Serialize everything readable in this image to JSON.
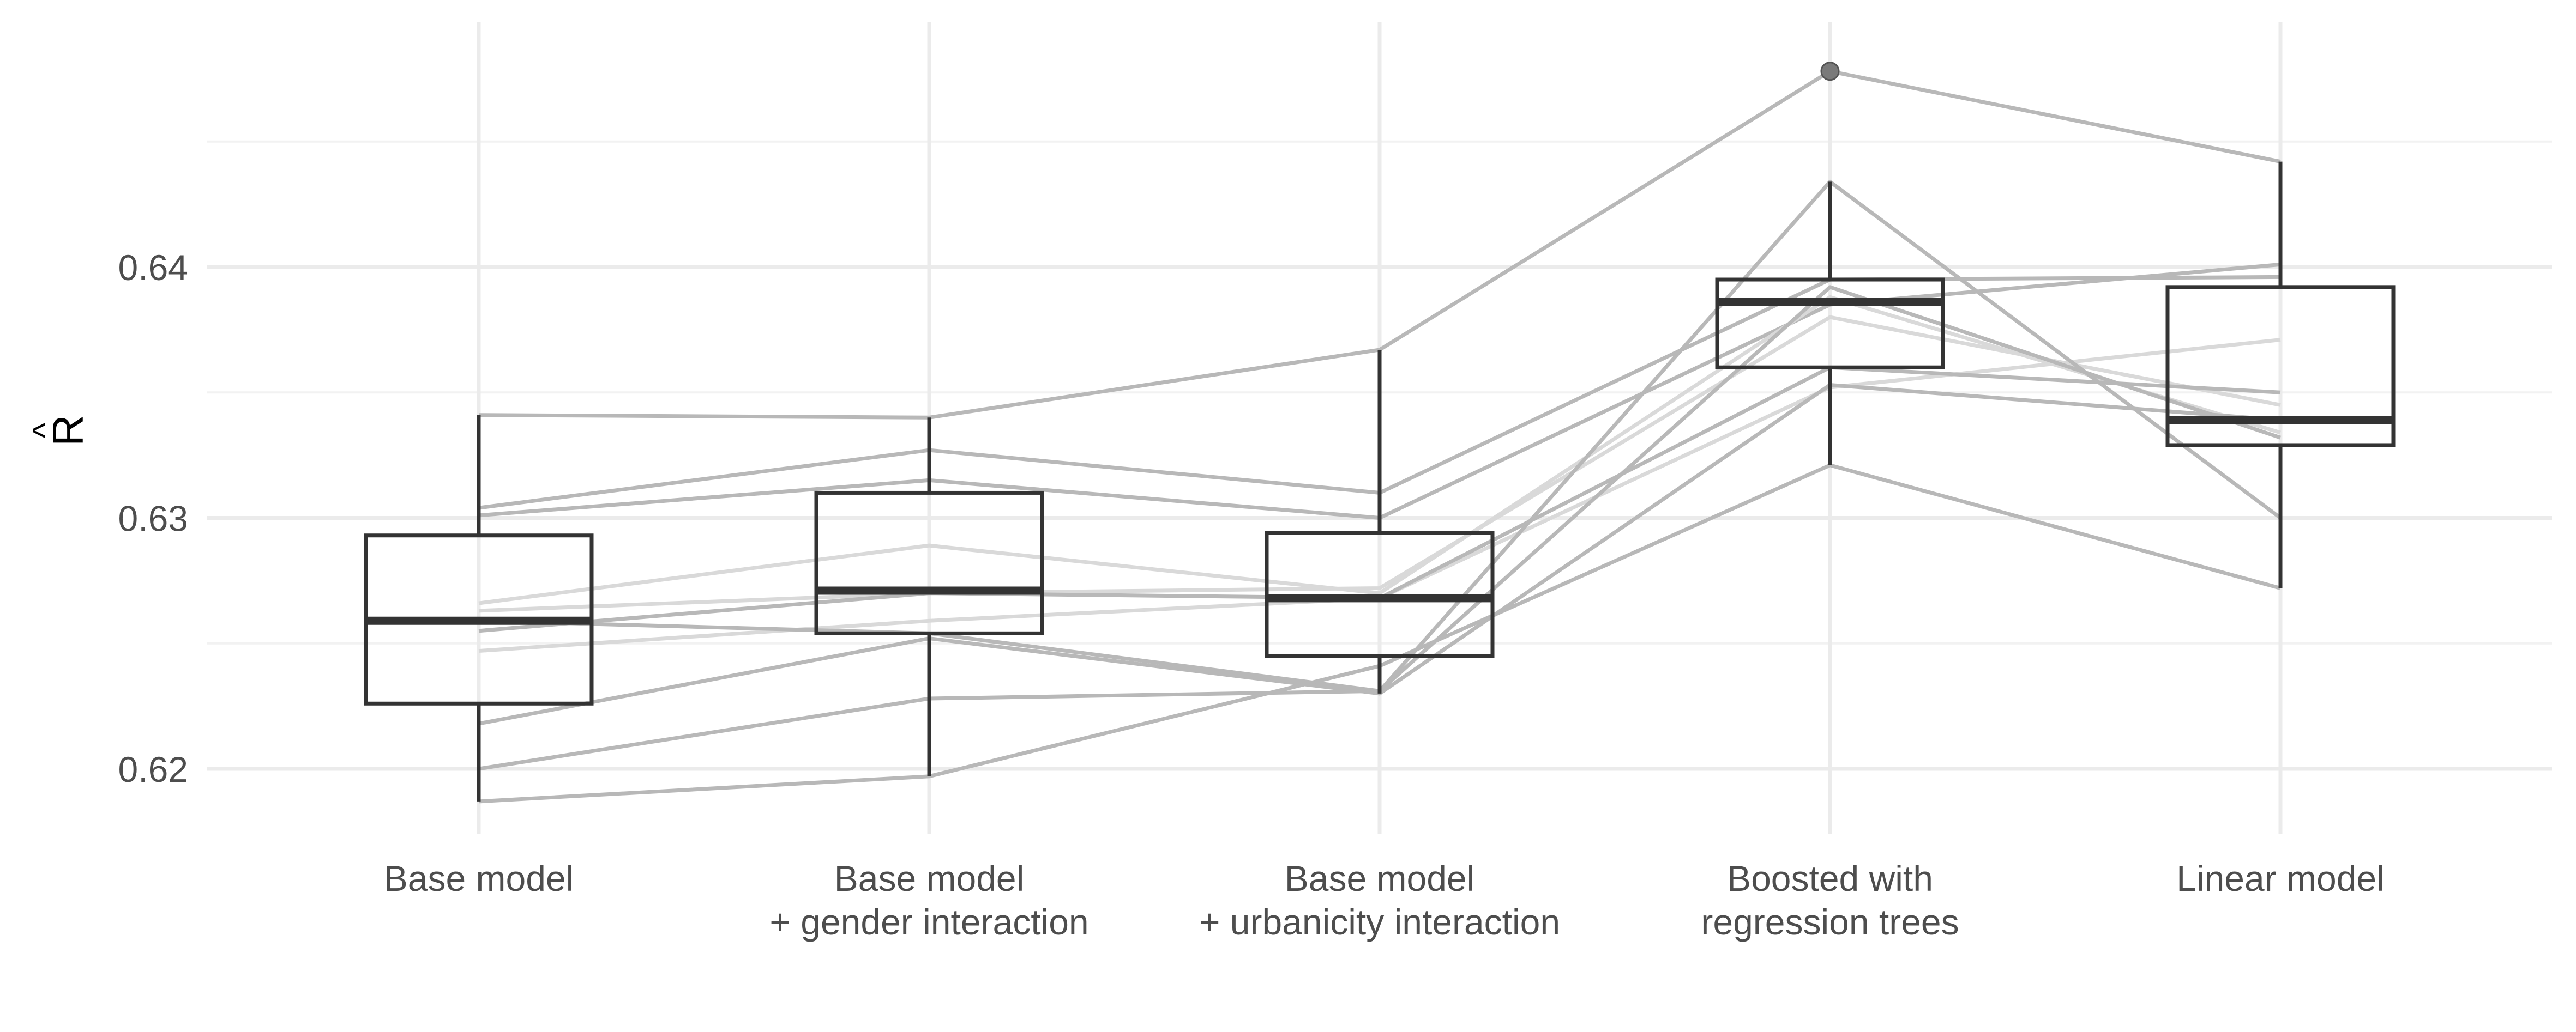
{
  "chart_data": {
    "type": "box",
    "ylabel": "R̂",
    "ylabel_hat": "^",
    "ylabel_letter": "R",
    "xlabel": "",
    "title": "",
    "ylim": [
      0.6175,
      0.6495
    ],
    "yticks": [
      0.62,
      0.63,
      0.64
    ],
    "ytick_labels": [
      "0.62",
      "0.63",
      "0.64"
    ],
    "grid": true,
    "categories": [
      [
        "Base model"
      ],
      [
        "Base model",
        "+ gender interaction"
      ],
      [
        "Base model",
        "+ urbanicity interaction"
      ],
      [
        "Boosted with",
        "regression trees"
      ],
      [
        "Linear model"
      ]
    ],
    "boxes": [
      {
        "whisker_low": 0.6187,
        "q1": 0.6226,
        "median": 0.6259,
        "q3": 0.6293,
        "whisker_high": 0.6341,
        "outliers": []
      },
      {
        "whisker_low": 0.6197,
        "q1": 0.6254,
        "median": 0.6271,
        "q3": 0.631,
        "whisker_high": 0.634,
        "outliers": []
      },
      {
        "whisker_low": 0.623,
        "q1": 0.6245,
        "median": 0.6268,
        "q3": 0.6294,
        "whisker_high": 0.6367,
        "outliers": []
      },
      {
        "whisker_low": 0.6321,
        "q1": 0.636,
        "median": 0.6386,
        "q3": 0.6395,
        "whisker_high": 0.6434,
        "outliers": [
          0.6478
        ]
      },
      {
        "whisker_low": 0.6272,
        "q1": 0.6329,
        "median": 0.6339,
        "q3": 0.6392,
        "whisker_high": 0.6442,
        "outliers": []
      }
    ],
    "paired_lines": [
      {
        "values": [
          0.6304,
          0.6327,
          0.631,
          0.6395,
          0.6396
        ],
        "shade": "mid"
      },
      {
        "values": [
          0.6301,
          0.6315,
          0.63,
          0.6385,
          0.6401
        ],
        "shade": "mid"
      },
      {
        "values": [
          0.6341,
          0.634,
          0.6367,
          0.6478,
          0.6442
        ],
        "shade": "mid"
      },
      {
        "values": [
          0.6263,
          0.627,
          0.6272,
          0.638,
          0.6345
        ],
        "shade": "light"
      },
      {
        "values": [
          0.6266,
          0.6289,
          0.627,
          0.6388,
          0.6334
        ],
        "shade": "light"
      },
      {
        "values": [
          0.6247,
          0.6259,
          0.6268,
          0.6352,
          0.6371
        ],
        "shade": "light"
      },
      {
        "values": [
          0.6255,
          0.627,
          0.6268,
          0.636,
          0.635
        ],
        "shade": "mid"
      },
      {
        "values": [
          0.6259,
          0.6254,
          0.6231,
          0.6392,
          0.6332
        ],
        "shade": "mid"
      },
      {
        "values": [
          0.6218,
          0.6252,
          0.623,
          0.6353,
          0.6339
        ],
        "shade": "mid"
      },
      {
        "values": [
          0.62,
          0.6228,
          0.6231,
          0.6434,
          0.63
        ],
        "shade": "mid"
      },
      {
        "values": [
          0.6187,
          0.6197,
          0.6241,
          0.6321,
          0.6272
        ],
        "shade": "mid"
      }
    ],
    "colors": {
      "box_stroke": "#333333",
      "median": "#333333",
      "line_mid": "#b8b8b8",
      "line_light": "#d9d9d9",
      "grid_major": "#ebebeb",
      "grid_minor": "#f2f2f2",
      "tick_text": "#4d4d4d",
      "axis_title": "#000000",
      "outlier": "#7a7a7a"
    }
  }
}
